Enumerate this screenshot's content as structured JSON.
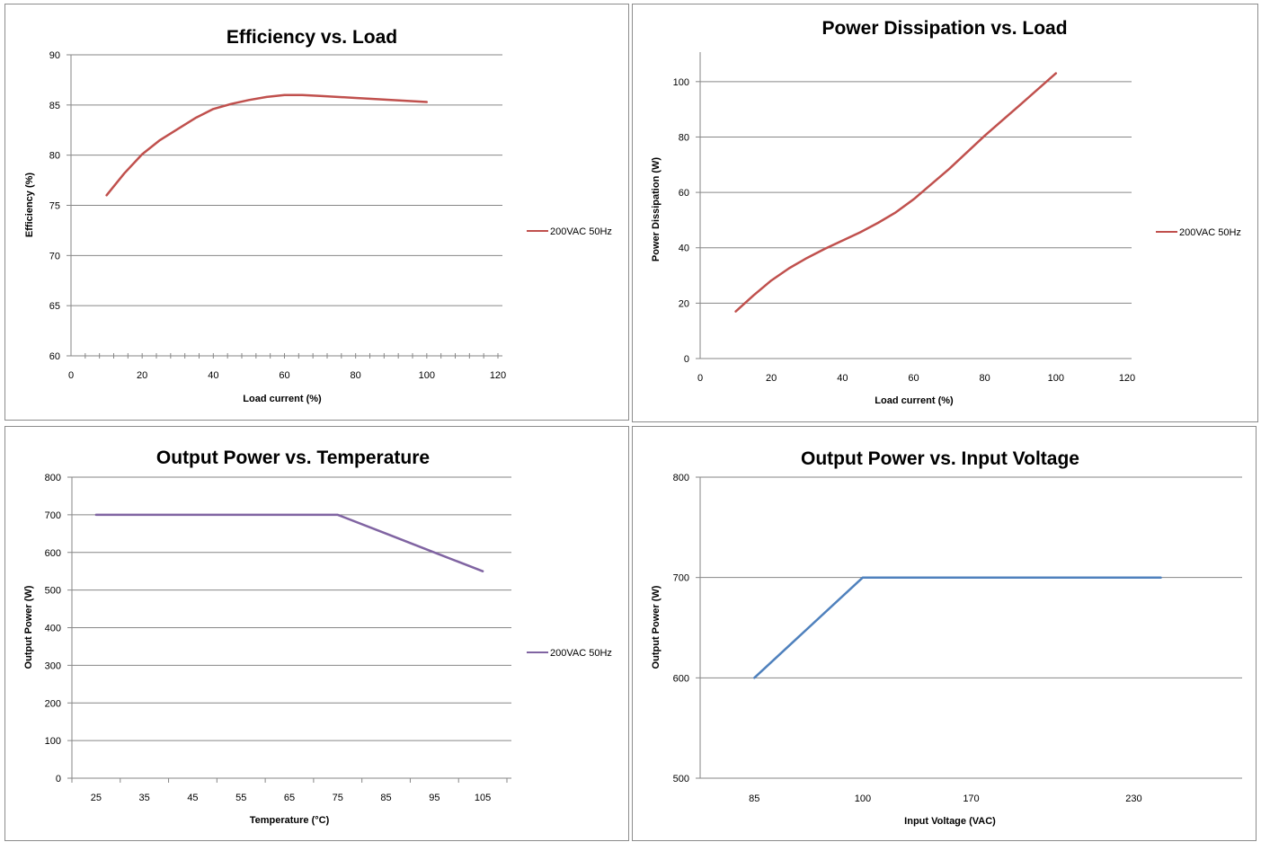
{
  "chart_data": [
    {
      "type": "line",
      "title": "Efficiency vs. Load",
      "xlabel": "Load current (%)",
      "ylabel": "Efficiency (%)",
      "xlim": [
        0,
        120
      ],
      "ylim": [
        60,
        90
      ],
      "x_ticks": [
        0,
        20,
        40,
        60,
        80,
        100,
        120
      ],
      "y_ticks": [
        60,
        65,
        70,
        75,
        80,
        85,
        90
      ],
      "grid": true,
      "minor_x_ticks": true,
      "legend_position": "right",
      "series": [
        {
          "name": "200VAC 50Hz",
          "color": "#c0504d",
          "x": [
            10,
            15,
            20,
            25,
            30,
            35,
            40,
            45,
            50,
            55,
            60,
            65,
            70,
            80,
            90,
            100
          ],
          "y": [
            76,
            78.2,
            80.1,
            81.5,
            82.6,
            83.7,
            84.6,
            85.1,
            85.5,
            85.8,
            86,
            86,
            85.9,
            85.7,
            85.5,
            85.3
          ]
        }
      ]
    },
    {
      "type": "line",
      "title": "Power Dissipation vs. Load",
      "xlabel": "Load current (%)",
      "ylabel": "Power Dissipation (W)",
      "xlim": [
        0,
        120
      ],
      "ylim": [
        0,
        110
      ],
      "x_ticks": [
        0,
        20,
        40,
        60,
        80,
        100,
        120
      ],
      "y_ticks": [
        0,
        20,
        40,
        60,
        80,
        100
      ],
      "grid": true,
      "minor_x_ticks": false,
      "legend_position": "right",
      "series": [
        {
          "name": "200VAC 50Hz",
          "color": "#c0504d",
          "x": [
            10,
            15,
            20,
            25,
            30,
            35,
            40,
            45,
            50,
            55,
            60,
            70,
            80,
            90,
            100
          ],
          "y": [
            17,
            22.8,
            28.2,
            32.6,
            36.3,
            39.6,
            42.6,
            45.6,
            49,
            52.8,
            57.5,
            68.5,
            80.5,
            91.7,
            103
          ]
        }
      ]
    },
    {
      "type": "line",
      "title": "Output Power vs. Temperature",
      "xlabel": "Temperature (°C)",
      "ylabel": "Output Power (W)",
      "categories": [
        "25",
        "35",
        "45",
        "55",
        "65",
        "75",
        "85",
        "95",
        "105"
      ],
      "ylim": [
        0,
        800
      ],
      "y_ticks": [
        0,
        100,
        200,
        300,
        400,
        500,
        600,
        700,
        800
      ],
      "grid": true,
      "legend_position": "right",
      "series": [
        {
          "name": "200VAC 50Hz",
          "color": "#8064a2",
          "values": [
            700,
            700,
            700,
            700,
            700,
            700,
            650,
            600,
            550
          ]
        }
      ]
    },
    {
      "type": "line",
      "title": "Output Power vs. Input Voltage",
      "xlabel": "Input Voltage (VAC)",
      "ylabel": "Output Power (W)",
      "x_ticks": [
        85,
        100,
        170,
        230
      ],
      "ylim": [
        500,
        800
      ],
      "y_ticks": [
        500,
        600,
        700,
        800
      ],
      "grid": true,
      "legend_position": "none",
      "series": [
        {
          "color": "#4f81bd",
          "x": [
            85,
            100,
            170,
            240
          ],
          "y": [
            600,
            700,
            700,
            700
          ]
        }
      ]
    }
  ]
}
